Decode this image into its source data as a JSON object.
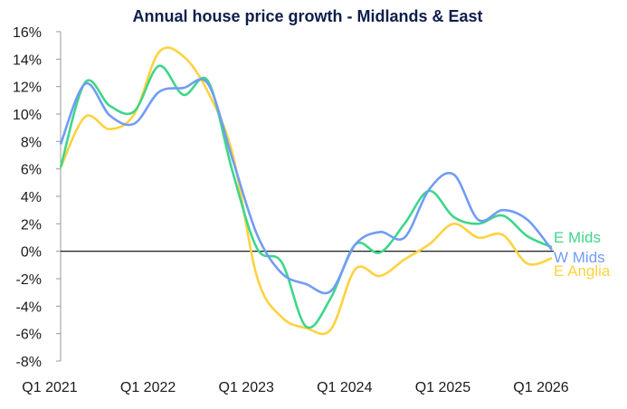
{
  "chart_data": {
    "type": "line",
    "title": "Annual house price growth - Midlands & East",
    "xlabel": "",
    "ylabel": "",
    "ylim": [
      -8,
      16
    ],
    "y_ticks": [
      "-8%",
      "-6%",
      "-4%",
      "-2%",
      "0%",
      "2%",
      "4%",
      "6%",
      "8%",
      "10%",
      "12%",
      "14%",
      "16%"
    ],
    "x_tick_labels": [
      "Q1 2021",
      "Q1 2022",
      "Q1 2023",
      "Q1 2024",
      "Q1 2025",
      "Q1 2026"
    ],
    "x": [
      "Q1 2021",
      "Q2 2021",
      "Q3 2021",
      "Q4 2021",
      "Q1 2022",
      "Q2 2022",
      "Q3 2022",
      "Q4 2022",
      "Q1 2023",
      "Q2 2023",
      "Q3 2023",
      "Q4 2023",
      "Q1 2024",
      "Q2 2024",
      "Q3 2024",
      "Q4 2024",
      "Q1 2025",
      "Q2 2025",
      "Q3 2025",
      "Q4 2025",
      "Q1 2026"
    ],
    "grid": false,
    "zero_line": true,
    "legend": "inline labels at line ends (right)",
    "series": [
      {
        "name": "E Mids",
        "color": "#3ed68a",
        "values": [
          6.1,
          12.3,
          10.6,
          10.2,
          13.5,
          11.4,
          12.4,
          5.8,
          0.2,
          -0.8,
          -5.5,
          -3.4,
          0.5,
          -0.1,
          2.0,
          4.4,
          2.5,
          2.0,
          2.6,
          1.1,
          0.3
        ]
      },
      {
        "name": "W Mids",
        "color": "#719cf6",
        "values": [
          7.8,
          12.2,
          9.9,
          9.3,
          11.6,
          11.9,
          12.2,
          6.7,
          1.2,
          -1.6,
          -2.4,
          -2.9,
          0.5,
          1.4,
          1.0,
          4.5,
          5.6,
          2.3,
          3.0,
          2.3,
          0.1
        ]
      },
      {
        "name": "E Anglia",
        "color": "#ffd23f",
        "values": [
          6.1,
          9.8,
          8.9,
          10.0,
          14.5,
          14.2,
          11.6,
          7.1,
          -1.9,
          -4.8,
          -5.6,
          -5.7,
          -1.3,
          -1.8,
          -0.6,
          0.5,
          2.0,
          1.0,
          1.2,
          -0.9,
          -0.5
        ]
      }
    ]
  }
}
